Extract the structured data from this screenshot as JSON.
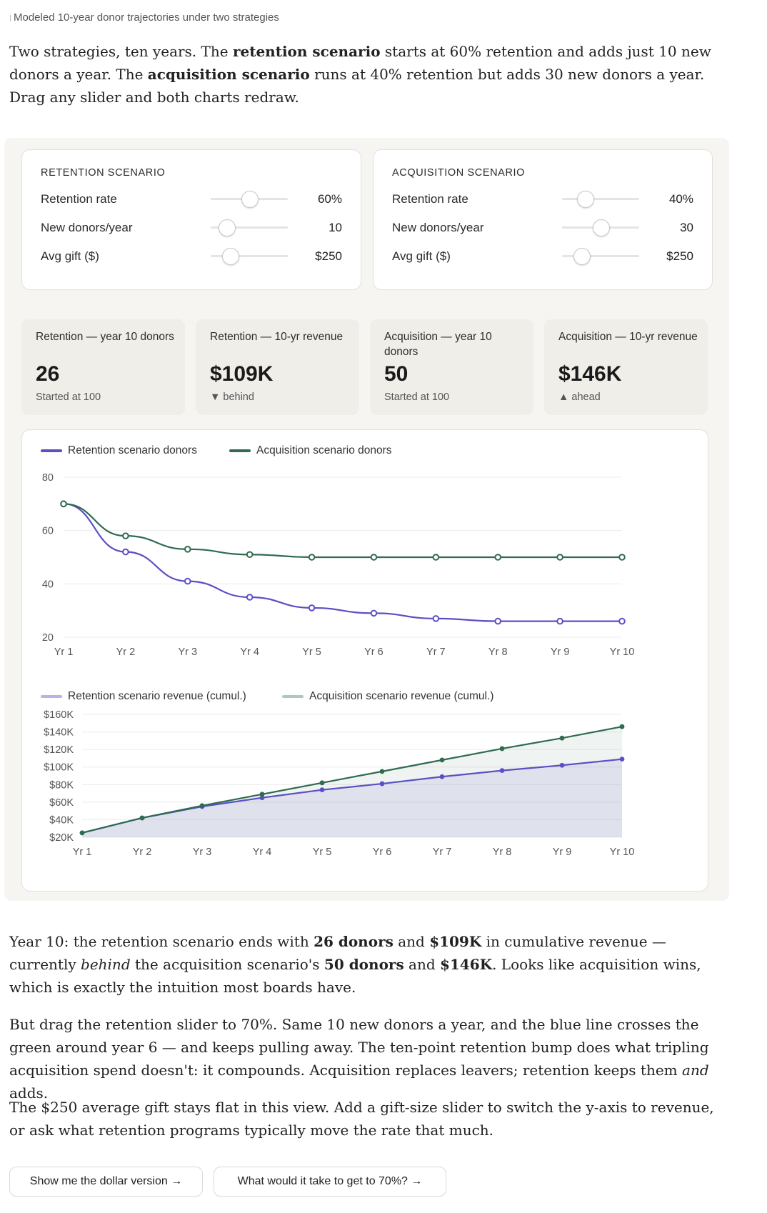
{
  "caption": "Modeled 10-year donor trajectories under two strategies",
  "intro": {
    "t1": "Two strategies, ten years. The ",
    "b1": "retention scenario",
    "t2": " starts at 60% retention and adds just 10 new donors a year. The ",
    "b2": "acquisition scenario",
    "t3": " runs at 40% retention but adds 30 new donors a year. Drag any slider and both charts redraw."
  },
  "controls": [
    {
      "title": "RETENTION SCENARIO",
      "rows": [
        {
          "label": "Retention rate",
          "value": "60%",
          "level": 0.5
        },
        {
          "label": "New donors/year",
          "value": "10",
          "level": 0.2
        },
        {
          "label": "Avg gift ($)",
          "value": "$250",
          "level": 0.25
        }
      ]
    },
    {
      "title": "ACQUISITION SCENARIO",
      "rows": [
        {
          "label": "Retention rate",
          "value": "40%",
          "level": 0.3
        },
        {
          "label": "New donors/year",
          "value": "30",
          "level": 0.5
        },
        {
          "label": "Avg gift ($)",
          "value": "$250",
          "level": 0.25
        }
      ]
    }
  ],
  "stats": [
    {
      "label": "Retention — year 10 donors",
      "value": "26",
      "sub": "Started at 100"
    },
    {
      "label": "Retention — 10-yr revenue",
      "value": "$109K",
      "sub": "▼ behind"
    },
    {
      "label": "Acquisition — year 10 donors",
      "value": "50",
      "sub": "Started at 100"
    },
    {
      "label": "Acquisition — 10-yr revenue",
      "value": "$146K",
      "sub": "▲ ahead"
    }
  ],
  "colors": {
    "retention": "#5b4fc4",
    "acquisition": "#2f6b4f",
    "retention_light": "#b9b2e6",
    "acquisition_light": "#aec9bb"
  },
  "chart_data": [
    {
      "type": "line",
      "categories": [
        "Yr 1",
        "Yr 2",
        "Yr 3",
        "Yr 4",
        "Yr 5",
        "Yr 6",
        "Yr 7",
        "Yr 8",
        "Yr 9",
        "Yr 10"
      ],
      "series": [
        {
          "name": "Retention scenario donors",
          "values": [
            70,
            52,
            41,
            35,
            31,
            29,
            27,
            26,
            26,
            26
          ]
        },
        {
          "name": "Acquisition scenario donors",
          "values": [
            70,
            58,
            53,
            51,
            50,
            50,
            50,
            50,
            50,
            50
          ]
        }
      ],
      "yticks": [
        "80",
        "60",
        "40",
        "20"
      ],
      "ylim": [
        20,
        80
      ],
      "legend": "top-left",
      "grid": true
    },
    {
      "type": "area",
      "categories": [
        "Yr 1",
        "Yr 2",
        "Yr 3",
        "Yr 4",
        "Yr 5",
        "Yr 6",
        "Yr 7",
        "Yr 8",
        "Yr 9",
        "Yr 10"
      ],
      "series": [
        {
          "name": "Retention scenario revenue (cumul.)",
          "values": [
            25,
            42,
            55,
            65,
            74,
            81,
            89,
            96,
            102,
            109
          ]
        },
        {
          "name": "Acquisition scenario revenue (cumul.)",
          "values": [
            25,
            42,
            56,
            69,
            82,
            95,
            108,
            121,
            133,
            146
          ]
        }
      ],
      "yticks": [
        "$160K",
        "$140K",
        "$120K",
        "$100K",
        "$80K",
        "$60K",
        "$40K",
        "$20K"
      ],
      "ylim": [
        20,
        160
      ],
      "legend": "top-left",
      "grid": true
    }
  ],
  "result": {
    "t1": "Year 10: the retention scenario ends with ",
    "b1": "26 donors",
    "t2": " and ",
    "b2": "$109K",
    "t3": " in cumulative revenue — currently ",
    "i1": "behind",
    "t4": " the acquisition scenario's ",
    "b3": "50 donors",
    "t5": " and ",
    "b4": "$146K",
    "t6": ". Looks like acquisition wins, which is exactly the intuition most boards have."
  },
  "para2": {
    "t1": "But drag the retention slider to 70%. Same 10 new donors a year, and the blue line crosses the green around year 6 — and keeps pulling away. The ten-point retention bump does what tripling acquisition spend doesn't: it compounds. Acquisition replaces leavers; retention keeps them ",
    "i1": "and",
    "t2": " adds."
  },
  "para3": "The $250 average gift stays flat in this view. Add a gift-size slider to switch the y-axis to revenue, or ask what retention programs typically move the rate that much.",
  "buttons": {
    "dollar": "Show me the dollar version →",
    "seventy": "What would it take to get to 70%? →"
  }
}
